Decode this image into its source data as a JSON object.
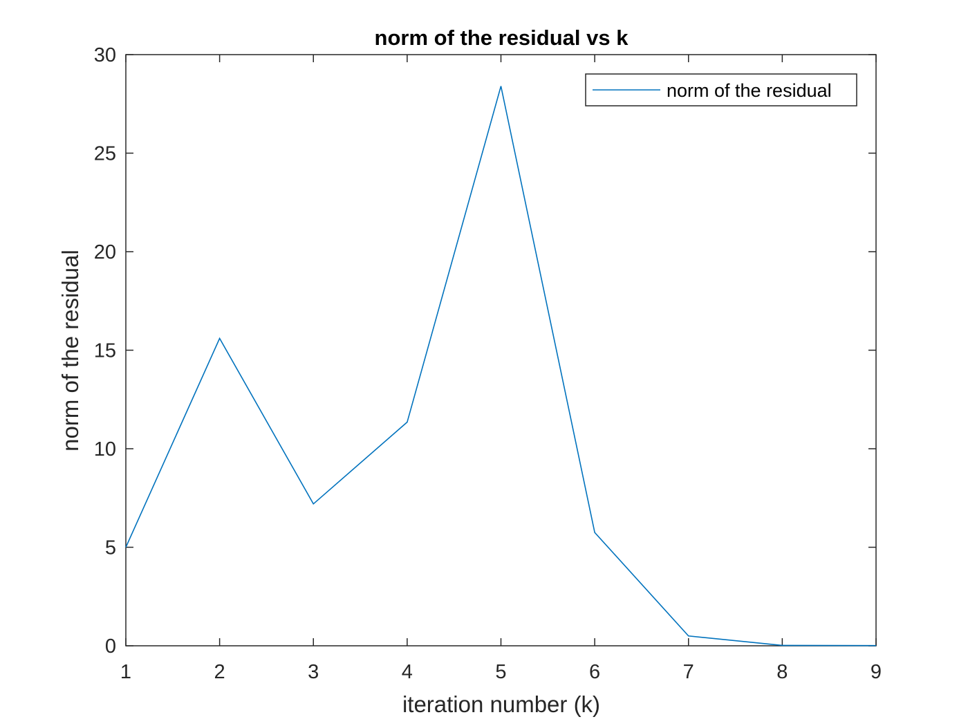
{
  "chart_data": {
    "type": "line",
    "title": "norm of the residual vs k",
    "xlabel": "iteration number (k)",
    "ylabel": "norm of the residual",
    "xlim": [
      1,
      9
    ],
    "ylim": [
      0,
      30
    ],
    "xticks": [
      1,
      2,
      3,
      4,
      5,
      6,
      7,
      8,
      9
    ],
    "yticks": [
      0,
      5,
      10,
      15,
      20,
      25,
      30
    ],
    "grid": false,
    "legend_position": "top-right",
    "series": [
      {
        "name": "norm of the residual",
        "color": "#0072BD",
        "x": [
          1,
          2,
          3,
          4,
          5,
          6,
          7,
          8,
          9
        ],
        "y": [
          5.0,
          15.6,
          7.2,
          11.35,
          28.4,
          5.75,
          0.5,
          0.02,
          0.01
        ]
      }
    ]
  }
}
